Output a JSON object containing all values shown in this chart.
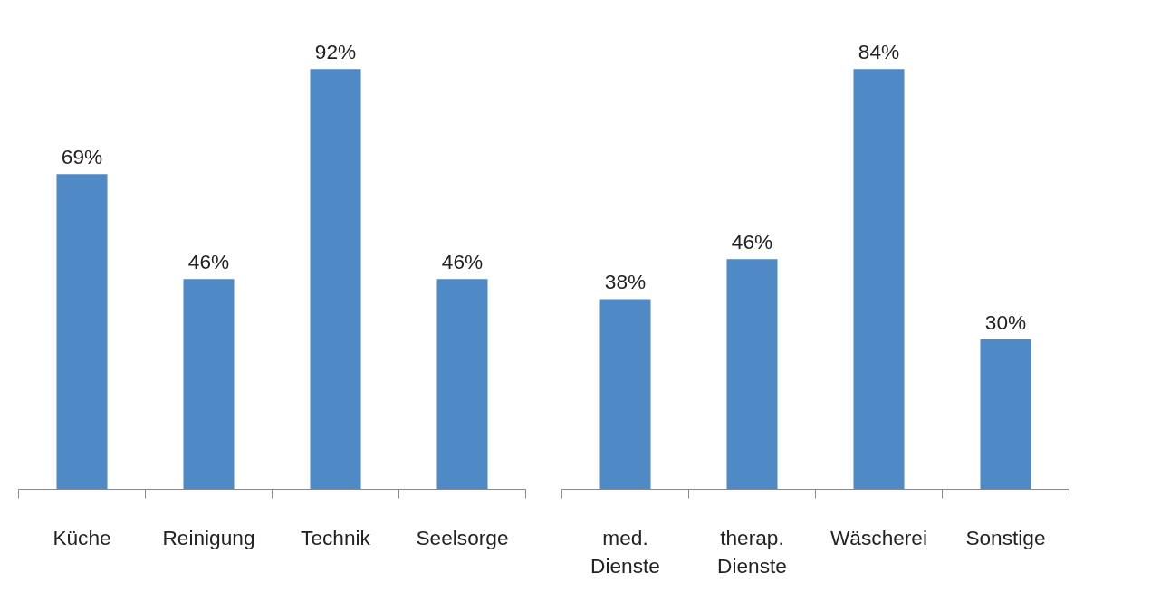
{
  "chart_data": [
    {
      "type": "bar",
      "categories": [
        "Küche",
        "Reinigung",
        "Technik",
        "Seelsorge"
      ],
      "values": [
        69,
        46,
        92,
        46
      ],
      "value_labels": [
        "69%",
        "46%",
        "92%",
        "46%"
      ],
      "color": "#4f89c6",
      "tick_labels": "x",
      "grid": false
    },
    {
      "type": "bar",
      "categories": [
        "med.\nDienste",
        "therap.\nDienste",
        "Wäscherei",
        "Sonstige"
      ],
      "values": [
        38,
        46,
        84,
        30
      ],
      "value_labels": [
        "38%",
        "46%",
        "84%",
        "30%"
      ],
      "color": "#4f89c6",
      "tick_labels": "x",
      "grid": false
    }
  ]
}
